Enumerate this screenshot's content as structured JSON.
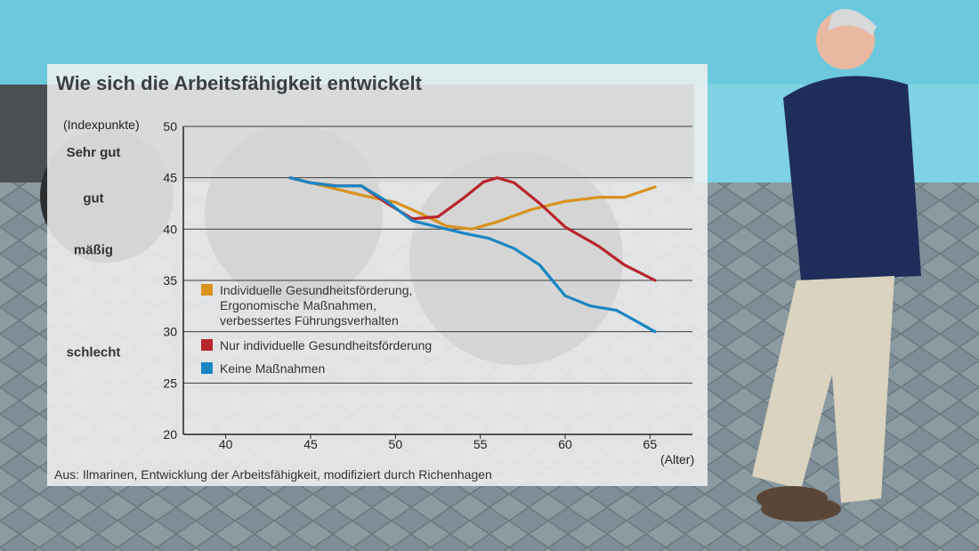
{
  "chart_data": {
    "type": "line",
    "title": "Wie sich die Arbeitsfähigkeit entwickelt",
    "ylabel": "(Indexpunkte)",
    "xlabel": "(Alter)",
    "ylim": [
      20,
      50
    ],
    "xlim": [
      37.5,
      67.5
    ],
    "yticks": [
      20,
      25,
      30,
      35,
      40,
      45,
      50
    ],
    "xticks": [
      40,
      45,
      50,
      55,
      60,
      65
    ],
    "ratings": [
      {
        "label": "Sehr gut",
        "value": 47.5
      },
      {
        "label": "gut",
        "value": 43
      },
      {
        "label": "mäßig",
        "value": 38
      },
      {
        "label": "schlecht",
        "value": 28
      }
    ],
    "grid": true,
    "legend_position": "center-left",
    "series": [
      {
        "name": "Individuelle Gesundheitsförderung, Ergonomische Maßnahmen, verbessertes Führungsverhalten",
        "legend_lines": [
          "Individuelle Gesundheitsförderung,",
          "Ergonomische Maßnahmen,",
          "verbessertes Führungsverhalten"
        ],
        "color": "#d9921e",
        "x": [
          43.8,
          46,
          48,
          50,
          51.5,
          53,
          54.5,
          56,
          58,
          60,
          62,
          63.5,
          65.3
        ],
        "y": [
          45,
          44.1,
          43.3,
          42.6,
          41.5,
          40.3,
          40,
          40.7,
          41.9,
          42.7,
          43.1,
          43.1,
          44.1
        ]
      },
      {
        "name": "Nur individuelle Gesundheitsförderung",
        "legend_lines": [
          "Nur individuelle Gesundheitsförderung"
        ],
        "color": "#b8252c",
        "x": [
          43.8,
          45,
          46.5,
          48,
          49.5,
          51,
          52.5,
          54,
          55.2,
          56,
          57,
          58.5,
          60,
          62,
          63.5,
          65.3
        ],
        "y": [
          45,
          44.5,
          44.2,
          44.2,
          42.5,
          41,
          41.2,
          43,
          44.6,
          45,
          44.5,
          42.5,
          40.2,
          38.3,
          36.5,
          35
        ]
      },
      {
        "name": "Keine Maßnahmen",
        "legend_lines": [
          "Keine Maßnahmen"
        ],
        "color": "#1a85c2",
        "x": [
          43.8,
          45,
          46.5,
          48,
          49.5,
          51,
          52.5,
          54,
          55.5,
          57,
          58.5,
          60,
          61.5,
          63,
          64,
          65.3
        ],
        "y": [
          45,
          44.5,
          44.2,
          44.2,
          42.7,
          40.8,
          40.2,
          39.6,
          39.1,
          38.1,
          36.5,
          33.5,
          32.5,
          32.1,
          31.2,
          30
        ]
      }
    ],
    "source": "Aus: Ilmarinen, Entwicklung der Arbeitsfähigkeit, modifiziert durch Richenhagen"
  }
}
